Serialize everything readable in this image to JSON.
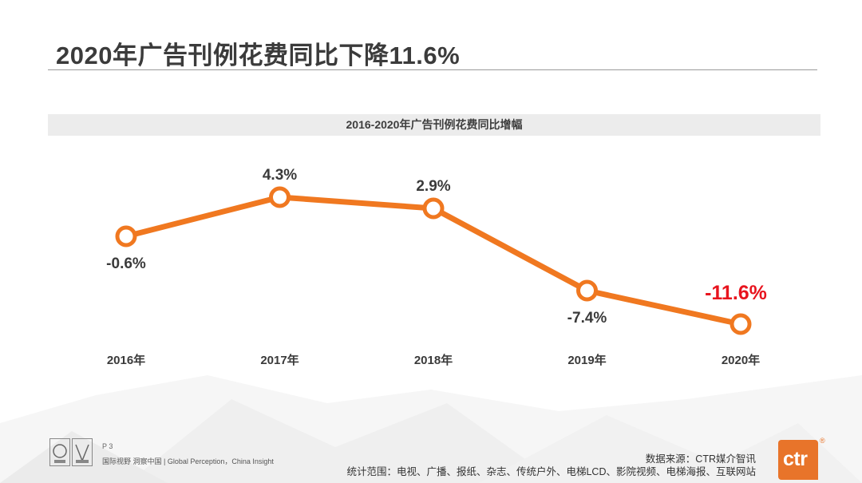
{
  "page": {
    "title": "2020年广告刊例花费同比下降11.6%",
    "page_number": "P 3",
    "tagline": "国际视野  洞察中国 | Global Perception，China Insight",
    "source": "数据来源：CTR媒介智讯",
    "scope": "统计范围：电视、广播、报纸、杂志、传统户外、电梯LCD、影院视频、电梯海报、互联网站",
    "brand_logo_text": "ctr",
    "brand_reg": "®"
  },
  "colors": {
    "line": "#f07820",
    "highlight": "#e8141e",
    "label": "#3a3a3a",
    "band": "#ececec"
  },
  "chart_data": {
    "type": "line",
    "title": "2016-2020年广告刊例花费同比增幅",
    "categories": [
      "2016年",
      "2017年",
      "2018年",
      "2019年",
      "2020年"
    ],
    "series": [
      {
        "name": "广告刊例花费同比增幅",
        "values": [
          -0.6,
          4.3,
          2.9,
          -7.4,
          -11.6
        ],
        "labels": [
          "-0.6%",
          "4.3%",
          "2.9%",
          "-7.4%",
          "-11.6%"
        ],
        "label_position": [
          "below",
          "above",
          "above",
          "below",
          "above"
        ],
        "highlight_index": 4
      }
    ],
    "ylim": [
      -16,
      8
    ],
    "grid": false,
    "legend": "none"
  }
}
